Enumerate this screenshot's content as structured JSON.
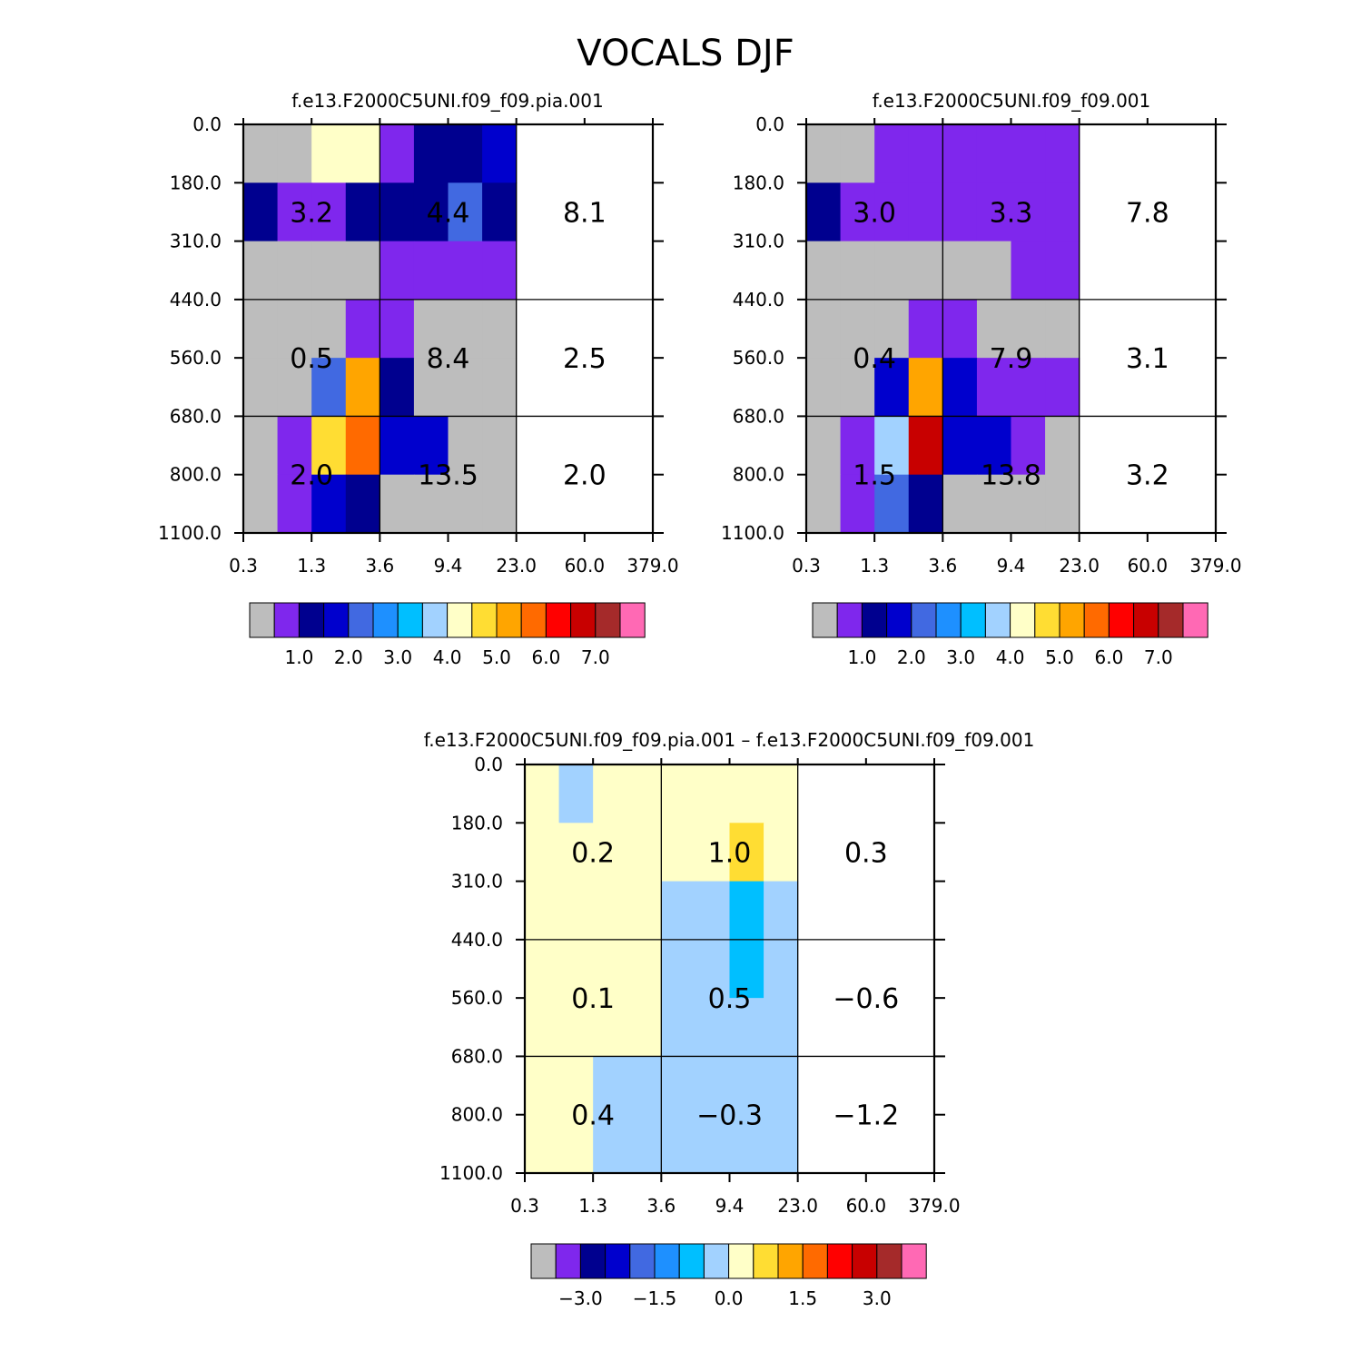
{
  "title": "VOCALS DJF",
  "colors": {
    "palette": [
      "#bdbdbd",
      "#7f27ed",
      "#00008f",
      "#0000cd",
      "#4169e1",
      "#1e90ff",
      "#00bfff",
      "#a2d2ff",
      "#ffffc8",
      "#ffdd33",
      "#ffa500",
      "#ff6a00",
      "#ff0000",
      "#c80000",
      "#a52a2a",
      "#ff69b4"
    ]
  },
  "chart_data": [
    {
      "type": "heatmap",
      "title": "f.e13.F2000C5UNI.f09_f09.pia.001",
      "x_ticks": [
        "0.3",
        "1.3",
        "3.6",
        "9.4",
        "23.0",
        "60.0",
        "379.0"
      ],
      "y_ticks": [
        "0.0",
        "180.0",
        "310.0",
        "440.0",
        "560.0",
        "680.0",
        "800.0",
        "1100.0"
      ],
      "cells": [
        [
          0,
          0,
          8,
          8,
          1,
          2,
          2,
          3
        ],
        [
          2,
          1,
          1,
          2,
          2,
          2,
          4,
          2
        ],
        [
          0,
          0,
          0,
          0,
          1,
          1,
          1,
          1
        ],
        [
          0,
          0,
          0,
          1,
          1,
          0,
          0,
          0
        ],
        [
          0,
          0,
          4,
          10,
          2,
          0,
          0,
          0
        ],
        [
          0,
          1,
          9,
          11,
          3,
          3,
          0,
          0
        ],
        [
          0,
          1,
          3,
          2,
          0,
          0,
          0,
          0
        ]
      ],
      "labels": [
        {
          "row": 1,
          "col": 0,
          "text": "3.2"
        },
        {
          "row": 1,
          "col": 1,
          "text": "4.4"
        },
        {
          "row": 1,
          "col": 2,
          "text": "8.1"
        },
        {
          "row": 2,
          "col": 0,
          "text": "0.5"
        },
        {
          "row": 2,
          "col": 1,
          "text": "8.4"
        },
        {
          "row": 2,
          "col": 2,
          "text": "2.5"
        },
        {
          "row": 3,
          "col": 0,
          "text": "2.0"
        },
        {
          "row": 3,
          "col": 1,
          "text": "13.5"
        },
        {
          "row": 3,
          "col": 2,
          "text": "2.0"
        }
      ],
      "colorbar_labels": [
        "1.0",
        "2.0",
        "3.0",
        "4.0",
        "5.0",
        "6.0",
        "7.0"
      ]
    },
    {
      "type": "heatmap",
      "title": "f.e13.F2000C5UNI.f09_f09.001",
      "x_ticks": [
        "0.3",
        "1.3",
        "3.6",
        "9.4",
        "23.0",
        "60.0",
        "379.0"
      ],
      "y_ticks": [
        "0.0",
        "180.0",
        "310.0",
        "440.0",
        "560.0",
        "680.0",
        "800.0",
        "1100.0"
      ],
      "cells": [
        [
          0,
          0,
          1,
          1,
          1,
          1,
          1,
          1
        ],
        [
          2,
          1,
          1,
          1,
          1,
          1,
          1,
          1
        ],
        [
          0,
          0,
          0,
          0,
          0,
          0,
          1,
          1
        ],
        [
          0,
          0,
          0,
          1,
          1,
          0,
          0,
          0
        ],
        [
          0,
          0,
          3,
          10,
          3,
          1,
          1,
          1
        ],
        [
          0,
          1,
          7,
          13,
          3,
          3,
          1,
          0
        ],
        [
          0,
          1,
          4,
          2,
          0,
          0,
          0,
          0
        ]
      ],
      "labels": [
        {
          "row": 1,
          "col": 0,
          "text": "3.0"
        },
        {
          "row": 1,
          "col": 1,
          "text": "3.3"
        },
        {
          "row": 1,
          "col": 2,
          "text": "7.8"
        },
        {
          "row": 2,
          "col": 0,
          "text": "0.4"
        },
        {
          "row": 2,
          "col": 1,
          "text": "7.9"
        },
        {
          "row": 2,
          "col": 2,
          "text": "3.1"
        },
        {
          "row": 3,
          "col": 0,
          "text": "1.5"
        },
        {
          "row": 3,
          "col": 1,
          "text": "13.8"
        },
        {
          "row": 3,
          "col": 2,
          "text": "3.2"
        }
      ],
      "colorbar_labels": [
        "1.0",
        "2.0",
        "3.0",
        "4.0",
        "5.0",
        "6.0",
        "7.0"
      ]
    },
    {
      "type": "heatmap",
      "title": "f.e13.F2000C5UNI.f09_f09.pia.001 – f.e13.F2000C5UNI.f09_f09.001",
      "x_ticks": [
        "0.3",
        "1.3",
        "3.6",
        "9.4",
        "23.0",
        "60.0",
        "379.0"
      ],
      "y_ticks": [
        "0.0",
        "180.0",
        "310.0",
        "440.0",
        "560.0",
        "680.0",
        "800.0",
        "1100.0"
      ],
      "cells": [
        [
          8,
          7,
          8,
          8,
          8,
          8,
          8,
          8
        ],
        [
          8,
          8,
          8,
          8,
          8,
          8,
          9,
          8
        ],
        [
          8,
          8,
          8,
          8,
          7,
          7,
          6,
          7
        ],
        [
          8,
          8,
          8,
          8,
          7,
          7,
          6,
          7
        ],
        [
          8,
          8,
          8,
          8,
          7,
          7,
          7,
          7
        ],
        [
          8,
          8,
          7,
          7,
          7,
          7,
          7,
          7
        ],
        [
          8,
          8,
          7,
          7,
          7,
          7,
          7,
          7
        ]
      ],
      "labels": [
        {
          "row": 1,
          "col": 0,
          "text": "0.2"
        },
        {
          "row": 1,
          "col": 1,
          "text": "1.0"
        },
        {
          "row": 1,
          "col": 2,
          "text": "0.3"
        },
        {
          "row": 2,
          "col": 0,
          "text": "0.1"
        },
        {
          "row": 2,
          "col": 1,
          "text": "0.5"
        },
        {
          "row": 2,
          "col": 2,
          "text": "−0.6"
        },
        {
          "row": 3,
          "col": 0,
          "text": "0.4"
        },
        {
          "row": 3,
          "col": 1,
          "text": "−0.3"
        },
        {
          "row": 3,
          "col": 2,
          "text": "−1.2"
        }
      ],
      "colorbar_labels": [
        "−3.0",
        "−1.5",
        "0.0",
        "1.5",
        "3.0"
      ]
    }
  ]
}
